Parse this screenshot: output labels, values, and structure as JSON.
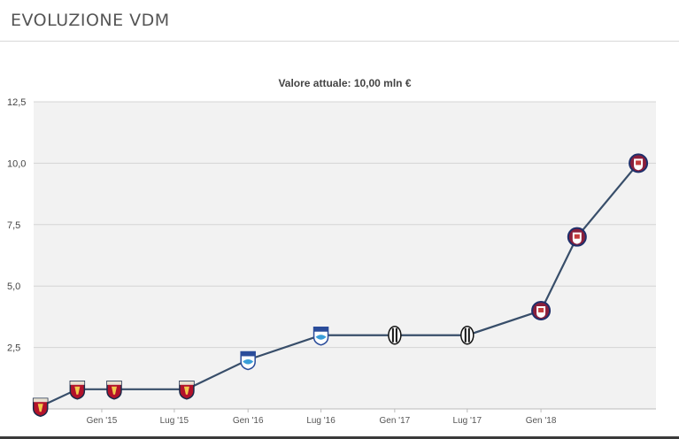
{
  "header": {
    "title": "EVOLUZIONE VDM"
  },
  "chart_data": {
    "type": "line",
    "title": "Valore attuale: 10,00 mln €",
    "xlabel": "",
    "ylabel": "",
    "ylim": [
      0,
      12.5
    ],
    "yticks": [
      {
        "value": 2.5,
        "label": "2,5"
      },
      {
        "value": 5.0,
        "label": "5,0"
      },
      {
        "value": 7.5,
        "label": "7,5"
      },
      {
        "value": 10.0,
        "label": "10,0"
      },
      {
        "value": 12.5,
        "label": "12,5"
      }
    ],
    "xticks": [
      {
        "date": "2015-01-01",
        "label": "Gen '15"
      },
      {
        "date": "2015-07-01",
        "label": "Lug '15"
      },
      {
        "date": "2016-01-01",
        "label": "Gen '16"
      },
      {
        "date": "2016-07-01",
        "label": "Lug '16"
      },
      {
        "date": "2017-01-01",
        "label": "Gen '17"
      },
      {
        "date": "2017-07-01",
        "label": "Lug '17"
      },
      {
        "date": "2018-01-01",
        "label": "Gen '18"
      }
    ],
    "xlim": [
      "2014-07-15",
      "2018-10-15"
    ],
    "grid": true,
    "line_color": "#384e6a",
    "plot_background": "#f2f2f2",
    "series": [
      {
        "values": [
          {
            "x": "2014-08-01",
            "y": 0.1,
            "club": "genoa"
          },
          {
            "x": "2014-11-01",
            "y": 0.8,
            "club": "genoa"
          },
          {
            "x": "2015-02-01",
            "y": 0.8,
            "club": "genoa"
          },
          {
            "x": "2015-08-01",
            "y": 0.8,
            "club": "genoa"
          },
          {
            "x": "2016-01-01",
            "y": 2.0,
            "club": "pescara"
          },
          {
            "x": "2016-07-01",
            "y": 3.0,
            "club": "pescara"
          },
          {
            "x": "2017-01-01",
            "y": 3.0,
            "club": "juventus"
          },
          {
            "x": "2017-07-01",
            "y": 3.0,
            "club": "juventus"
          },
          {
            "x": "2018-01-01",
            "y": 4.0,
            "club": "crotone"
          },
          {
            "x": "2018-04-01",
            "y": 7.0,
            "club": "crotone"
          },
          {
            "x": "2018-09-01",
            "y": 10.0,
            "club": "crotone"
          }
        ]
      }
    ],
    "club_icons": {
      "genoa": {
        "icon": "genoa-crest-icon",
        "primary": "#b3122a",
        "secondary": "#1b2a4a"
      },
      "pescara": {
        "icon": "pescara-crest-icon",
        "primary": "#3a9ed8",
        "secondary": "#2a4c9a"
      },
      "juventus": {
        "icon": "juventus-crest-icon",
        "primary": "#111111",
        "secondary": "#ffffff"
      },
      "crotone": {
        "icon": "crotone-crest-icon",
        "primary": "#8a1f3c",
        "secondary": "#1e2f6b"
      }
    }
  }
}
